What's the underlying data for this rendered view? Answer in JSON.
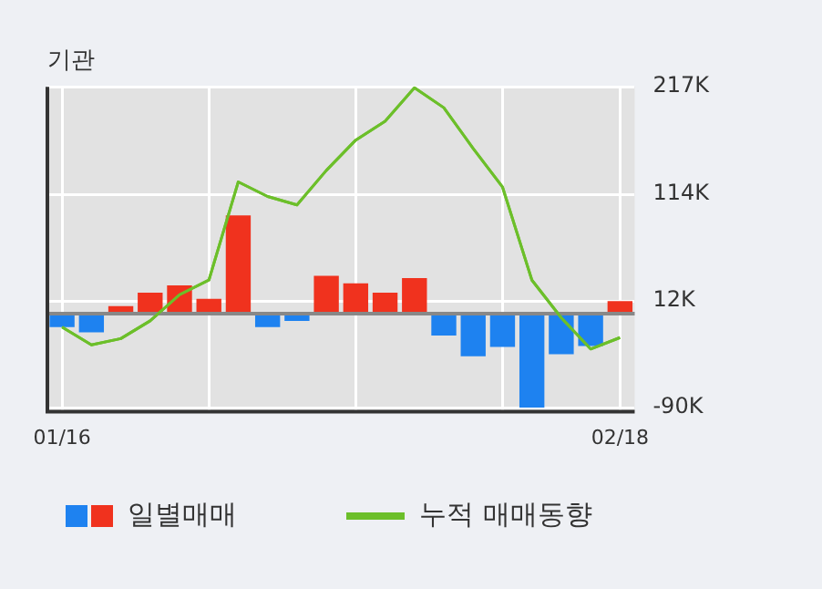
{
  "chart_data": {
    "type": "bar",
    "title": "기관",
    "categories": [
      "01/16",
      null,
      null,
      null,
      null,
      null,
      null,
      null,
      null,
      null,
      null,
      null,
      null,
      null,
      null,
      null,
      null,
      null,
      null,
      "02/18"
    ],
    "series": [
      {
        "name": "일별매매",
        "colors": [
          "#1e82f0",
          "#1e82f0",
          "#f0321e",
          "#f0321e",
          "#f0321e",
          "#f0321e",
          "#f0321e",
          "#1e82f0",
          "#1e82f0",
          "#f0321e",
          "#f0321e",
          "#f0321e",
          "#f0321e",
          "#1e82f0",
          "#1e82f0",
          "#1e82f0",
          "#1e82f0",
          "#1e82f0",
          "#1e82f0",
          "#f0321e"
        ],
        "values": [
          -13,
          -18,
          7,
          20,
          27,
          14,
          94,
          -13,
          -7,
          36,
          29,
          20,
          34,
          -21,
          -41,
          -32,
          -90,
          -39,
          -31,
          12
        ]
      },
      {
        "name": "누적 매매동향",
        "type": "line",
        "color": "#6cbf2a",
        "values": [
          -13,
          -30,
          -24,
          -7,
          18,
          32,
          126,
          112,
          104,
          137,
          166,
          184,
          216,
          197,
          158,
          121,
          32,
          -4,
          -34,
          -23
        ]
      }
    ],
    "ylim": [
      -94,
      217
    ],
    "yticks": [
      {
        "value": -90,
        "label": "-90K"
      },
      {
        "value": 12,
        "label": "12K"
      },
      {
        "value": 114,
        "label": "114K"
      },
      {
        "value": 217,
        "label": "217K"
      }
    ],
    "ref_lines": [
      {
        "axis": "y",
        "value": 0,
        "color": "#888888"
      }
    ],
    "grid": true,
    "legend": "bottom",
    "marker": "none"
  }
}
